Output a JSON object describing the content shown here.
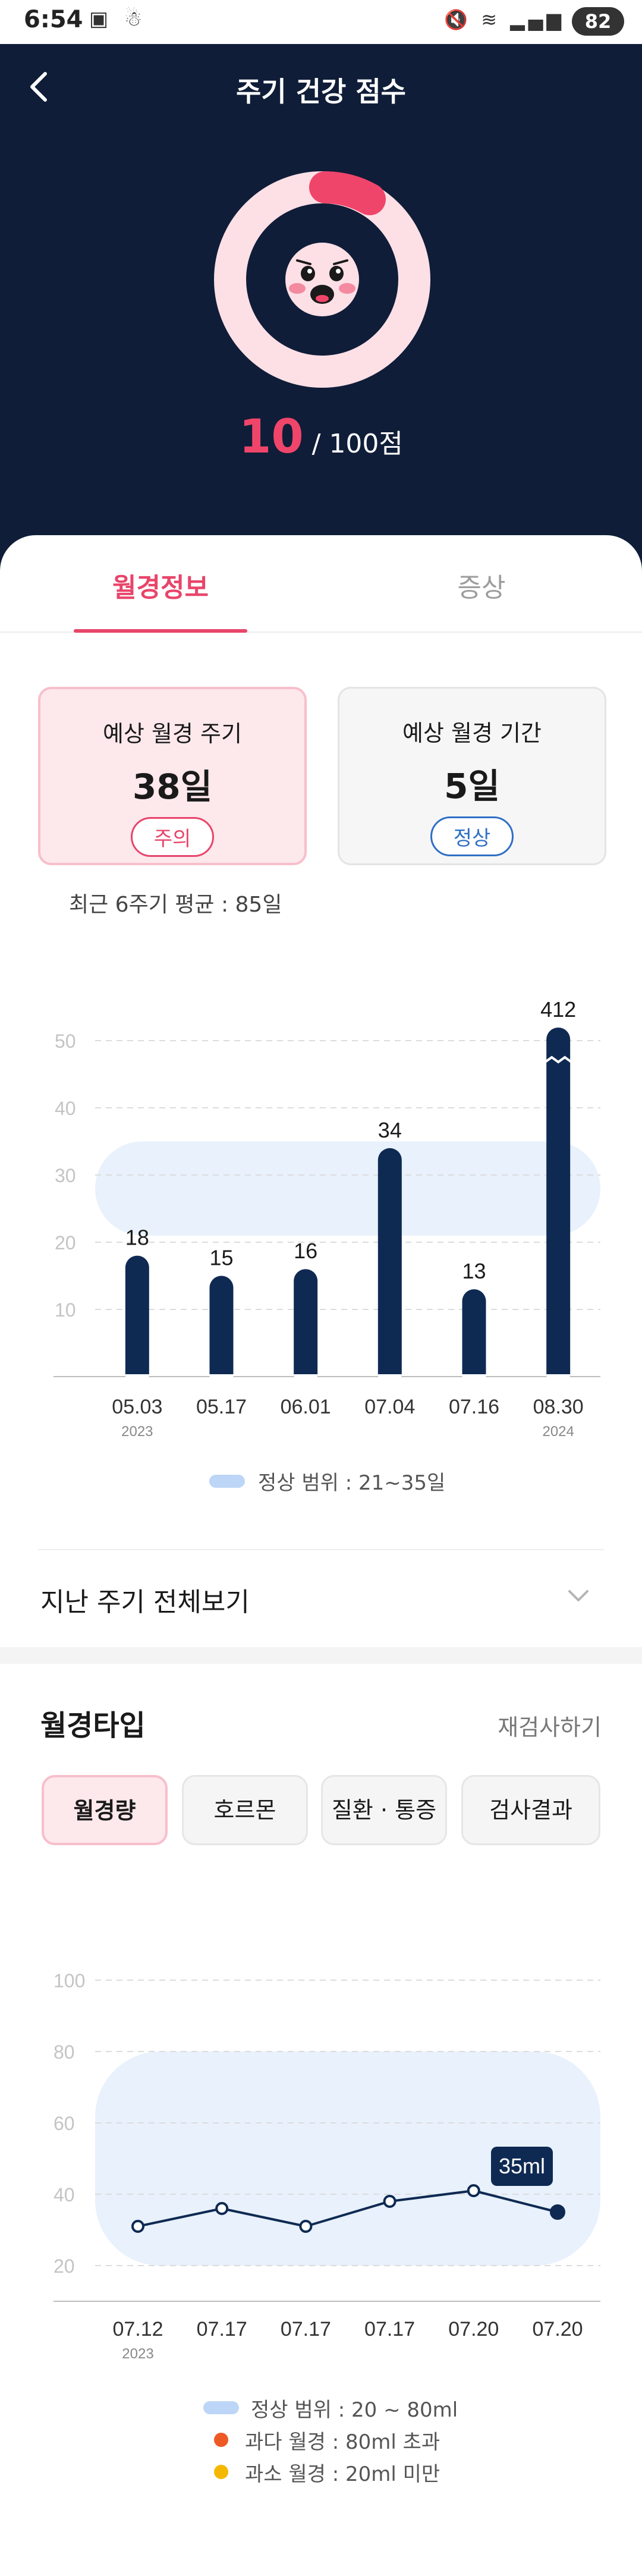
{
  "status_bar": {
    "time": "6:54",
    "battery": "82"
  },
  "header": {
    "title": "주기 건강 점수",
    "score": "10",
    "score_suffix": " / 100점"
  },
  "tabs": [
    {
      "label": "월경정보"
    },
    {
      "label": "증상"
    }
  ],
  "cards": [
    {
      "title": "예상 월경 주기",
      "value": "38일",
      "badge": "주의"
    },
    {
      "title": "예상 월경 기간",
      "value": "5일",
      "badge": "정상"
    }
  ],
  "avg_text": "최근 6주기 평균 : 85일",
  "cycle_chart": {
    "type": "bar",
    "categories": [
      "05.03",
      "05.17",
      "06.01",
      "07.04",
      "07.16",
      "08.30"
    ],
    "year_labels": [
      "2023",
      "",
      "",
      "",
      "",
      "2024"
    ],
    "values": [
      18,
      15,
      16,
      34,
      13,
      412
    ],
    "value_labels": [
      "18",
      "15",
      "16",
      "34",
      "13",
      "412"
    ],
    "y_ticks": [
      "10",
      "20",
      "30",
      "40",
      "50"
    ],
    "ylim": [
      0,
      50
    ],
    "normal_range": [
      21,
      35
    ],
    "axis_break_on_last": true,
    "bar_color": "#0f2a52",
    "legend": "정상 범위 : 21~35일"
  },
  "history": {
    "label": "지난 주기 전체보기"
  },
  "type_section": {
    "title": "월경타입",
    "retest": "재검사하기",
    "chips": [
      "월경량",
      "호르몬",
      "질환 · 통증",
      "검사결과"
    ]
  },
  "amount_chart": {
    "type": "line",
    "categories": [
      "07.12",
      "07.17",
      "07.17",
      "07.17",
      "07.20",
      "07.20"
    ],
    "year_labels": [
      "2023",
      "",
      "",
      "",
      "",
      ""
    ],
    "values": [
      31,
      36,
      31,
      38,
      41,
      35
    ],
    "y_ticks": [
      "20",
      "40",
      "60",
      "80",
      "100"
    ],
    "ylim": [
      10,
      100
    ],
    "normal_range": [
      20,
      80
    ],
    "highlight_label": "35ml",
    "legend": [
      "정상 범위 : 20 ~ 80ml",
      "과다 월경 : 80ml 초과",
      "과소 월경 : 20ml 미만"
    ]
  },
  "colors": {
    "accent": "#e8456a",
    "navy": "#0f1d38",
    "range": "#e8f1fc"
  }
}
